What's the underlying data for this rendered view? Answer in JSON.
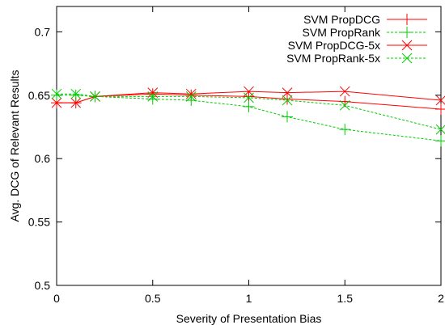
{
  "chart_data": {
    "type": "line",
    "xlabel": "Severity of Presentation Bias",
    "ylabel": "Avg. DCG of Relevant Results",
    "xlim": [
      0,
      2
    ],
    "ylim": [
      0.5,
      0.72
    ],
    "x_ticks": [
      0,
      0.5,
      1,
      1.5,
      2
    ],
    "x_tick_labels": [
      "0",
      "0.5",
      "1",
      "1.5",
      "2"
    ],
    "y_ticks": [
      0.5,
      0.55,
      0.6,
      0.65,
      0.7
    ],
    "y_tick_labels": [
      "0.5",
      "0.55",
      "0.6",
      "0.65",
      "0.7"
    ],
    "grid": false,
    "legend_position": "top-right",
    "series": [
      {
        "name": "SVM PropDCG",
        "color": "#ff0000",
        "dashed": false,
        "marker": "plus",
        "x": [
          0,
          0.1,
          0.2,
          0.5,
          0.7,
          1,
          1.2,
          1.5,
          2
        ],
        "y": [
          0.644,
          0.644,
          0.649,
          0.651,
          0.65,
          0.649,
          0.647,
          0.645,
          0.639
        ]
      },
      {
        "name": "SVM PropRank",
        "color": "#00cc00",
        "dashed": true,
        "marker": "plus",
        "x": [
          0,
          0.1,
          0.2,
          0.5,
          0.7,
          1,
          1.2,
          1.5,
          2
        ],
        "y": [
          0.65,
          0.65,
          0.649,
          0.647,
          0.646,
          0.641,
          0.633,
          0.623,
          0.614
        ]
      },
      {
        "name": "SVM PropDCG-5x",
        "color": "#ff0000",
        "dashed": false,
        "marker": "x",
        "x": [
          0,
          0.1,
          0.2,
          0.5,
          0.7,
          1,
          1.2,
          1.5,
          2
        ],
        "y": [
          0.644,
          0.644,
          0.649,
          0.652,
          0.651,
          0.653,
          0.652,
          0.653,
          0.646
        ]
      },
      {
        "name": "SVM PropRank-5x",
        "color": "#00cc00",
        "dashed": true,
        "marker": "x",
        "x": [
          0,
          0.1,
          0.2,
          0.5,
          0.7,
          1,
          1.2,
          1.5,
          2
        ],
        "y": [
          0.651,
          0.651,
          0.649,
          0.649,
          0.649,
          0.648,
          0.646,
          0.642,
          0.623
        ]
      }
    ]
  }
}
